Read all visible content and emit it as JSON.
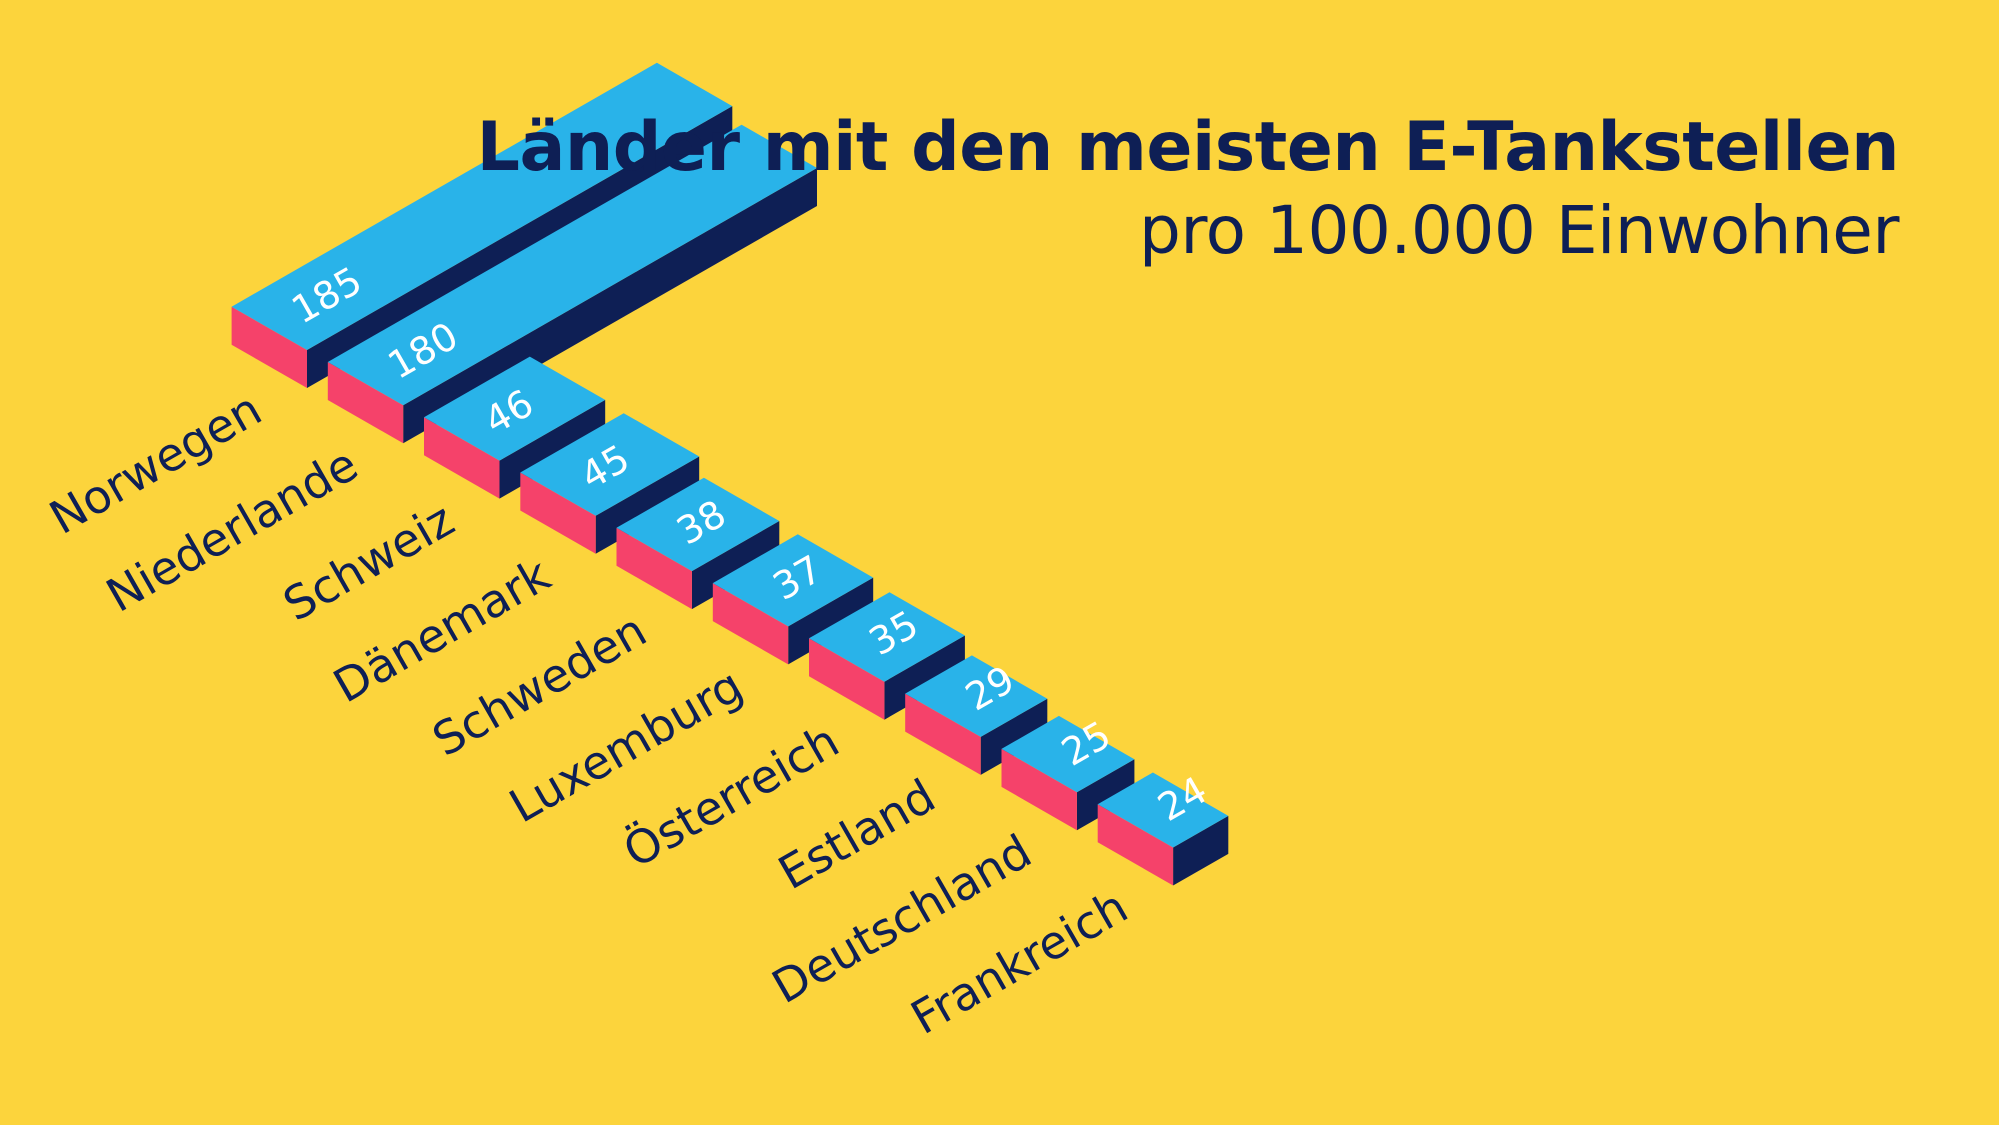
{
  "chart_data": {
    "type": "bar",
    "title": "Länder mit den meisten E-Tankstellen",
    "subtitle": "pro 100.000 Einwohner",
    "categories": [
      "Norwegen",
      "Niederlande",
      "Schweiz",
      "Dänemark",
      "Schweden",
      "Luxemburg",
      "Österreich",
      "Estland",
      "Deutschland",
      "Frankreich"
    ],
    "values": [
      185,
      180,
      46,
      45,
      38,
      37,
      35,
      29,
      25,
      24
    ],
    "value_labels": [
      "185",
      "180",
      "46",
      "45",
      "38",
      "37",
      "35",
      "29",
      "25",
      "24"
    ],
    "colors": {
      "background": "#fcd43c",
      "bar_top": "#29b3e9",
      "bar_front": "#f5426a",
      "bar_side": "#0e1f55",
      "text": "#0e1f55",
      "value_text": "#ffffff"
    }
  }
}
